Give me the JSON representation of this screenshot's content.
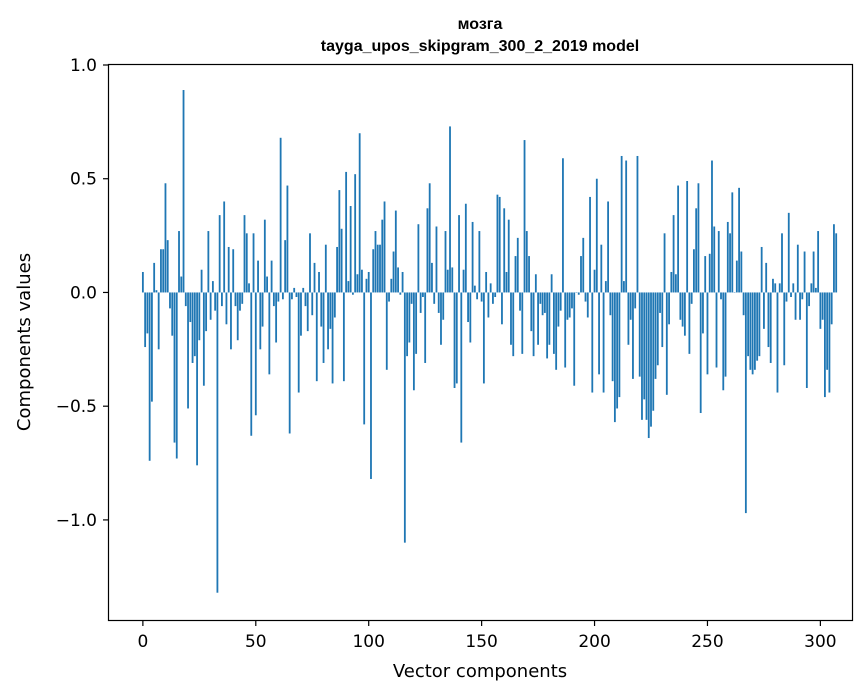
{
  "chart_data": {
    "type": "bar",
    "title": "мозга",
    "subtitle": "tayga_upos_skipgram_300_2_2019 model",
    "xlabel": "Vector components",
    "ylabel": "Components values",
    "xlim": [
      -15,
      314
    ],
    "ylim": [
      -1.44,
      1.0
    ],
    "xticks": [
      0,
      50,
      100,
      150,
      200,
      250,
      300
    ],
    "xtick_labels": [
      "0",
      "50",
      "100",
      "150",
      "200",
      "250",
      "300"
    ],
    "yticks": [
      -1.0,
      -0.5,
      0.0,
      0.5,
      1.0
    ],
    "ytick_labels": [
      "−1.0",
      "−0.5",
      "0.0",
      "0.5",
      "1.0"
    ],
    "bar_color": "#1f77b4",
    "grid": false,
    "x_start": 0,
    "values": [
      0.09,
      -0.24,
      -0.18,
      -0.74,
      -0.48,
      0.13,
      0.01,
      -0.25,
      0.19,
      0.19,
      0.48,
      0.23,
      -0.07,
      -0.19,
      -0.66,
      -0.73,
      0.27,
      0.07,
      0.89,
      -0.06,
      -0.51,
      -0.13,
      -0.31,
      -0.28,
      -0.76,
      -0.21,
      0.1,
      -0.41,
      -0.17,
      0.27,
      -0.12,
      0.05,
      -0.08,
      -1.32,
      0.34,
      -0.06,
      0.4,
      -0.14,
      0.2,
      -0.25,
      0.19,
      -0.06,
      -0.21,
      -0.08,
      -0.05,
      0.34,
      0.26,
      0.04,
      -0.63,
      0.26,
      -0.54,
      0.14,
      -0.25,
      -0.15,
      0.32,
      0.07,
      -0.36,
      0.14,
      -0.06,
      -0.22,
      -0.04,
      0.68,
      -0.03,
      0.23,
      0.47,
      -0.62,
      -0.03,
      0.02,
      -0.02,
      -0.44,
      -0.19,
      0.02,
      -0.06,
      -0.17,
      0.26,
      -0.1,
      0.13,
      -0.39,
      0.09,
      -0.15,
      -0.31,
      0.21,
      -0.25,
      -0.16,
      -0.4,
      -0.11,
      0.2,
      0.45,
      0.28,
      -0.39,
      0.53,
      0.05,
      0.38,
      -0.01,
      0.52,
      0.08,
      0.7,
      0.1,
      -0.58,
      0.06,
      0.09,
      -0.82,
      0.19,
      0.27,
      0.21,
      0.21,
      0.32,
      0.4,
      -0.34,
      -0.04,
      0.06,
      0.18,
      0.36,
      0.11,
      -0.01,
      0.09,
      -1.1,
      -0.28,
      -0.22,
      -0.05,
      -0.43,
      -0.27,
      0.3,
      -0.09,
      -0.02,
      -0.31,
      0.37,
      0.48,
      0.13,
      -0.05,
      0.29,
      -0.09,
      -0.23,
      -0.12,
      0.27,
      0.1,
      0.73,
      0.11,
      -0.42,
      -0.4,
      0.34,
      -0.66,
      0.1,
      0.39,
      -0.13,
      -0.22,
      0.31,
      0.03,
      -0.03,
      0.27,
      -0.04,
      -0.4,
      0.09,
      -0.11,
      0.04,
      -0.05,
      -0.02,
      0.43,
      0.42,
      -0.14,
      0.37,
      0.09,
      0.32,
      -0.23,
      -0.28,
      0.16,
      0.24,
      -0.08,
      -0.27,
      0.67,
      0.27,
      0.16,
      -0.17,
      -0.28,
      0.08,
      -0.23,
      -0.05,
      -0.1,
      -0.09,
      -0.29,
      -0.23,
      0.08,
      -0.27,
      -0.34,
      -0.15,
      -0.08,
      0.59,
      -0.33,
      -0.12,
      -0.11,
      -0.07,
      -0.41,
      0.0,
      -0.01,
      0.16,
      0.24,
      -0.04,
      -0.11,
      0.42,
      -0.44,
      0.1,
      0.5,
      -0.36,
      0.21,
      -0.44,
      0.05,
      0.4,
      -0.1,
      -0.39,
      -0.57,
      -0.51,
      -0.46,
      0.6,
      0.05,
      0.58,
      -0.23,
      -0.12,
      -0.38,
      -0.07,
      0.6,
      -0.37,
      -0.56,
      -0.47,
      -0.56,
      -0.64,
      -0.59,
      -0.52,
      -0.38,
      -0.32,
      -0.09,
      -0.24,
      0.26,
      -0.45,
      -0.14,
      0.09,
      0.34,
      0.08,
      0.47,
      -0.12,
      -0.15,
      -0.19,
      0.49,
      -0.27,
      -0.05,
      0.19,
      0.37,
      0.48,
      -0.53,
      -0.18,
      0.16,
      -0.36,
      0.17,
      0.58,
      0.29,
      -0.33,
      0.27,
      -0.03,
      -0.43,
      -0.37,
      0.31,
      0.26,
      0.44,
      0.0,
      0.14,
      0.46,
      0.18,
      -0.1,
      -0.97,
      -0.28,
      -0.34,
      -0.36,
      -0.34,
      -0.3,
      -0.28,
      0.2,
      -0.16,
      0.13,
      -0.24,
      -0.31,
      0.06,
      0.04,
      -0.44,
      0.04,
      0.26,
      -0.32,
      -0.04,
      0.35,
      -0.02,
      0.04,
      -0.12,
      0.21,
      -0.12,
      -0.03,
      0.18,
      -0.42,
      -0.06,
      0.04,
      0.18,
      0.02,
      0.27,
      -0.16,
      -0.12,
      -0.46,
      -0.34,
      -0.44,
      -0.14,
      0.3,
      0.26
    ]
  }
}
